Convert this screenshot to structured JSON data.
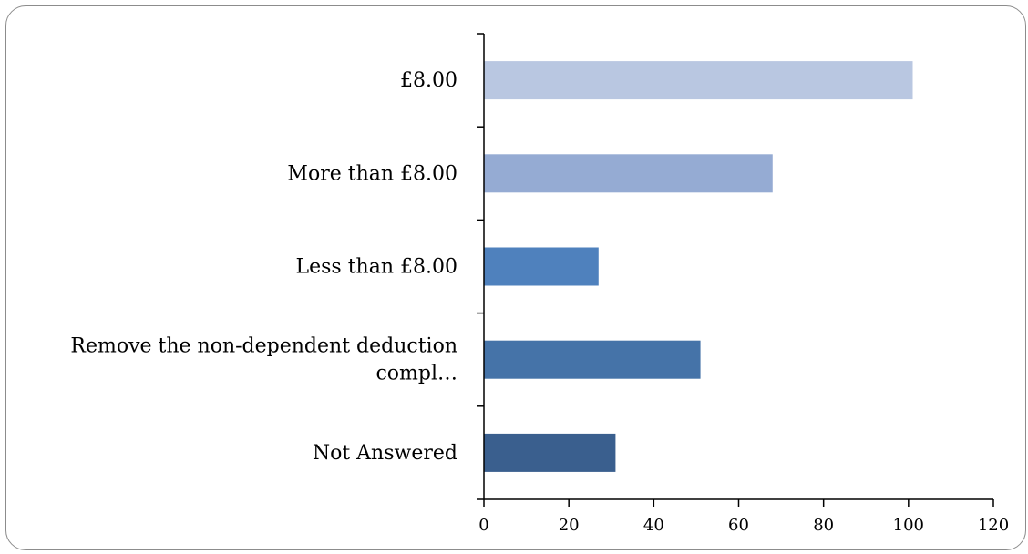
{
  "chart_data": {
    "type": "bar",
    "orientation": "horizontal",
    "categories": [
      [
        "£8.00"
      ],
      [
        "More than £8.00"
      ],
      [
        "Less than £8.00"
      ],
      [
        "Remove the non-dependent deduction",
        "compl…"
      ],
      [
        "Not Answered"
      ]
    ],
    "values": [
      101,
      68,
      27,
      51,
      31
    ],
    "colors": [
      "#b9c7e1",
      "#95abd3",
      "#4f81bd",
      "#4573a8",
      "#3a5f8e"
    ],
    "xlim": [
      0,
      120
    ],
    "xticks": [
      0,
      20,
      40,
      60,
      80,
      100,
      120
    ],
    "grid": false,
    "legend": "none"
  }
}
